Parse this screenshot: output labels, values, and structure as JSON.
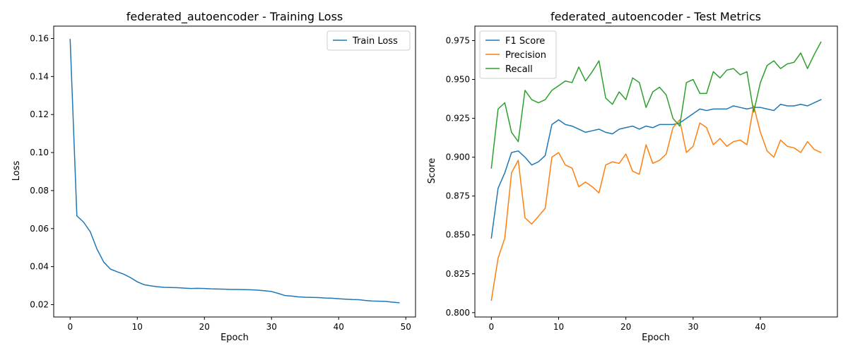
{
  "chart_data": [
    {
      "type": "line",
      "title": "federated_autoencoder - Training Loss",
      "xlabel": "Epoch",
      "ylabel": "Loss",
      "xlim": [
        -2.45,
        51.45
      ],
      "ylim": [
        0.0135,
        0.1665
      ],
      "xticks": [
        0,
        10,
        20,
        30,
        40,
        50
      ],
      "yticks": [
        0.02,
        0.04,
        0.06,
        0.08,
        0.1,
        0.12,
        0.14,
        0.16
      ],
      "ytick_decimals": 2,
      "grid": false,
      "legend": "upper right",
      "x": [
        0,
        1,
        2,
        3,
        4,
        5,
        6,
        7,
        8,
        9,
        10,
        11,
        12,
        13,
        14,
        15,
        16,
        17,
        18,
        19,
        20,
        21,
        22,
        23,
        24,
        25,
        26,
        27,
        28,
        29,
        30,
        31,
        32,
        33,
        34,
        35,
        36,
        37,
        38,
        39,
        40,
        41,
        42,
        43,
        44,
        45,
        46,
        47,
        48,
        49
      ],
      "series": [
        {
          "name": "Train Loss",
          "color": "#1f77b4",
          "values": [
            0.1595,
            0.0667,
            0.0634,
            0.0583,
            0.0492,
            0.0424,
            0.0387,
            0.0373,
            0.036,
            0.0342,
            0.032,
            0.0305,
            0.0299,
            0.0294,
            0.0291,
            0.029,
            0.0289,
            0.0287,
            0.0285,
            0.0286,
            0.0285,
            0.0283,
            0.0282,
            0.0281,
            0.028,
            0.028,
            0.0279,
            0.0278,
            0.0276,
            0.0273,
            0.0269,
            0.0259,
            0.0248,
            0.0245,
            0.0241,
            0.0239,
            0.0238,
            0.0237,
            0.0235,
            0.0234,
            0.0231,
            0.0229,
            0.0227,
            0.0226,
            0.0222,
            0.0219,
            0.0218,
            0.0217,
            0.0213,
            0.021
          ]
        }
      ]
    },
    {
      "type": "line",
      "title": "federated_autoencoder - Test Metrics",
      "xlabel": "Epoch",
      "ylabel": "Score",
      "xlim": [
        -2.45,
        51.45
      ],
      "ylim": [
        0.7972,
        0.9843
      ],
      "xticks": [
        0,
        10,
        20,
        30,
        40
      ],
      "yticks": [
        0.8,
        0.825,
        0.85,
        0.875,
        0.9,
        0.925,
        0.95,
        0.975
      ],
      "ytick_decimals": 3,
      "grid": false,
      "legend": "upper left",
      "x": [
        0,
        1,
        2,
        3,
        4,
        5,
        6,
        7,
        8,
        9,
        10,
        11,
        12,
        13,
        14,
        15,
        16,
        17,
        18,
        19,
        20,
        21,
        22,
        23,
        24,
        25,
        26,
        27,
        28,
        29,
        30,
        31,
        32,
        33,
        34,
        35,
        36,
        37,
        38,
        39,
        40,
        41,
        42,
        43,
        44,
        45,
        46,
        47,
        48,
        49
      ],
      "series": [
        {
          "name": "F1 Score",
          "color": "#1f77b4",
          "values": [
            0.848,
            0.88,
            0.89,
            0.903,
            0.904,
            0.9,
            0.895,
            0.897,
            0.901,
            0.921,
            0.924,
            0.921,
            0.92,
            0.918,
            0.916,
            0.917,
            0.918,
            0.916,
            0.915,
            0.918,
            0.919,
            0.92,
            0.918,
            0.92,
            0.919,
            0.921,
            0.921,
            0.921,
            0.922,
            0.925,
            0.928,
            0.931,
            0.93,
            0.931,
            0.931,
            0.931,
            0.933,
            0.932,
            0.931,
            0.932,
            0.932,
            0.931,
            0.93,
            0.934,
            0.933,
            0.933,
            0.934,
            0.933,
            0.935,
            0.937
          ]
        },
        {
          "name": "Precision",
          "color": "#ff7f0e",
          "values": [
            0.808,
            0.835,
            0.848,
            0.89,
            0.898,
            0.861,
            0.857,
            0.862,
            0.867,
            0.9,
            0.903,
            0.895,
            0.893,
            0.881,
            0.884,
            0.881,
            0.877,
            0.895,
            0.897,
            0.896,
            0.902,
            0.891,
            0.889,
            0.908,
            0.896,
            0.898,
            0.902,
            0.919,
            0.924,
            0.903,
            0.907,
            0.922,
            0.919,
            0.908,
            0.912,
            0.907,
            0.91,
            0.911,
            0.908,
            0.933,
            0.916,
            0.904,
            0.9,
            0.911,
            0.907,
            0.906,
            0.903,
            0.91,
            0.905,
            0.903
          ]
        },
        {
          "name": "Recall",
          "color": "#2ca02c",
          "values": [
            0.893,
            0.931,
            0.935,
            0.916,
            0.91,
            0.943,
            0.937,
            0.935,
            0.937,
            0.943,
            0.946,
            0.949,
            0.948,
            0.958,
            0.949,
            0.955,
            0.962,
            0.938,
            0.934,
            0.942,
            0.937,
            0.951,
            0.948,
            0.932,
            0.942,
            0.945,
            0.94,
            0.925,
            0.92,
            0.948,
            0.95,
            0.941,
            0.941,
            0.955,
            0.951,
            0.956,
            0.957,
            0.953,
            0.955,
            0.929,
            0.948,
            0.959,
            0.962,
            0.957,
            0.96,
            0.961,
            0.967,
            0.957,
            0.966,
            0.974
          ]
        }
      ]
    }
  ]
}
